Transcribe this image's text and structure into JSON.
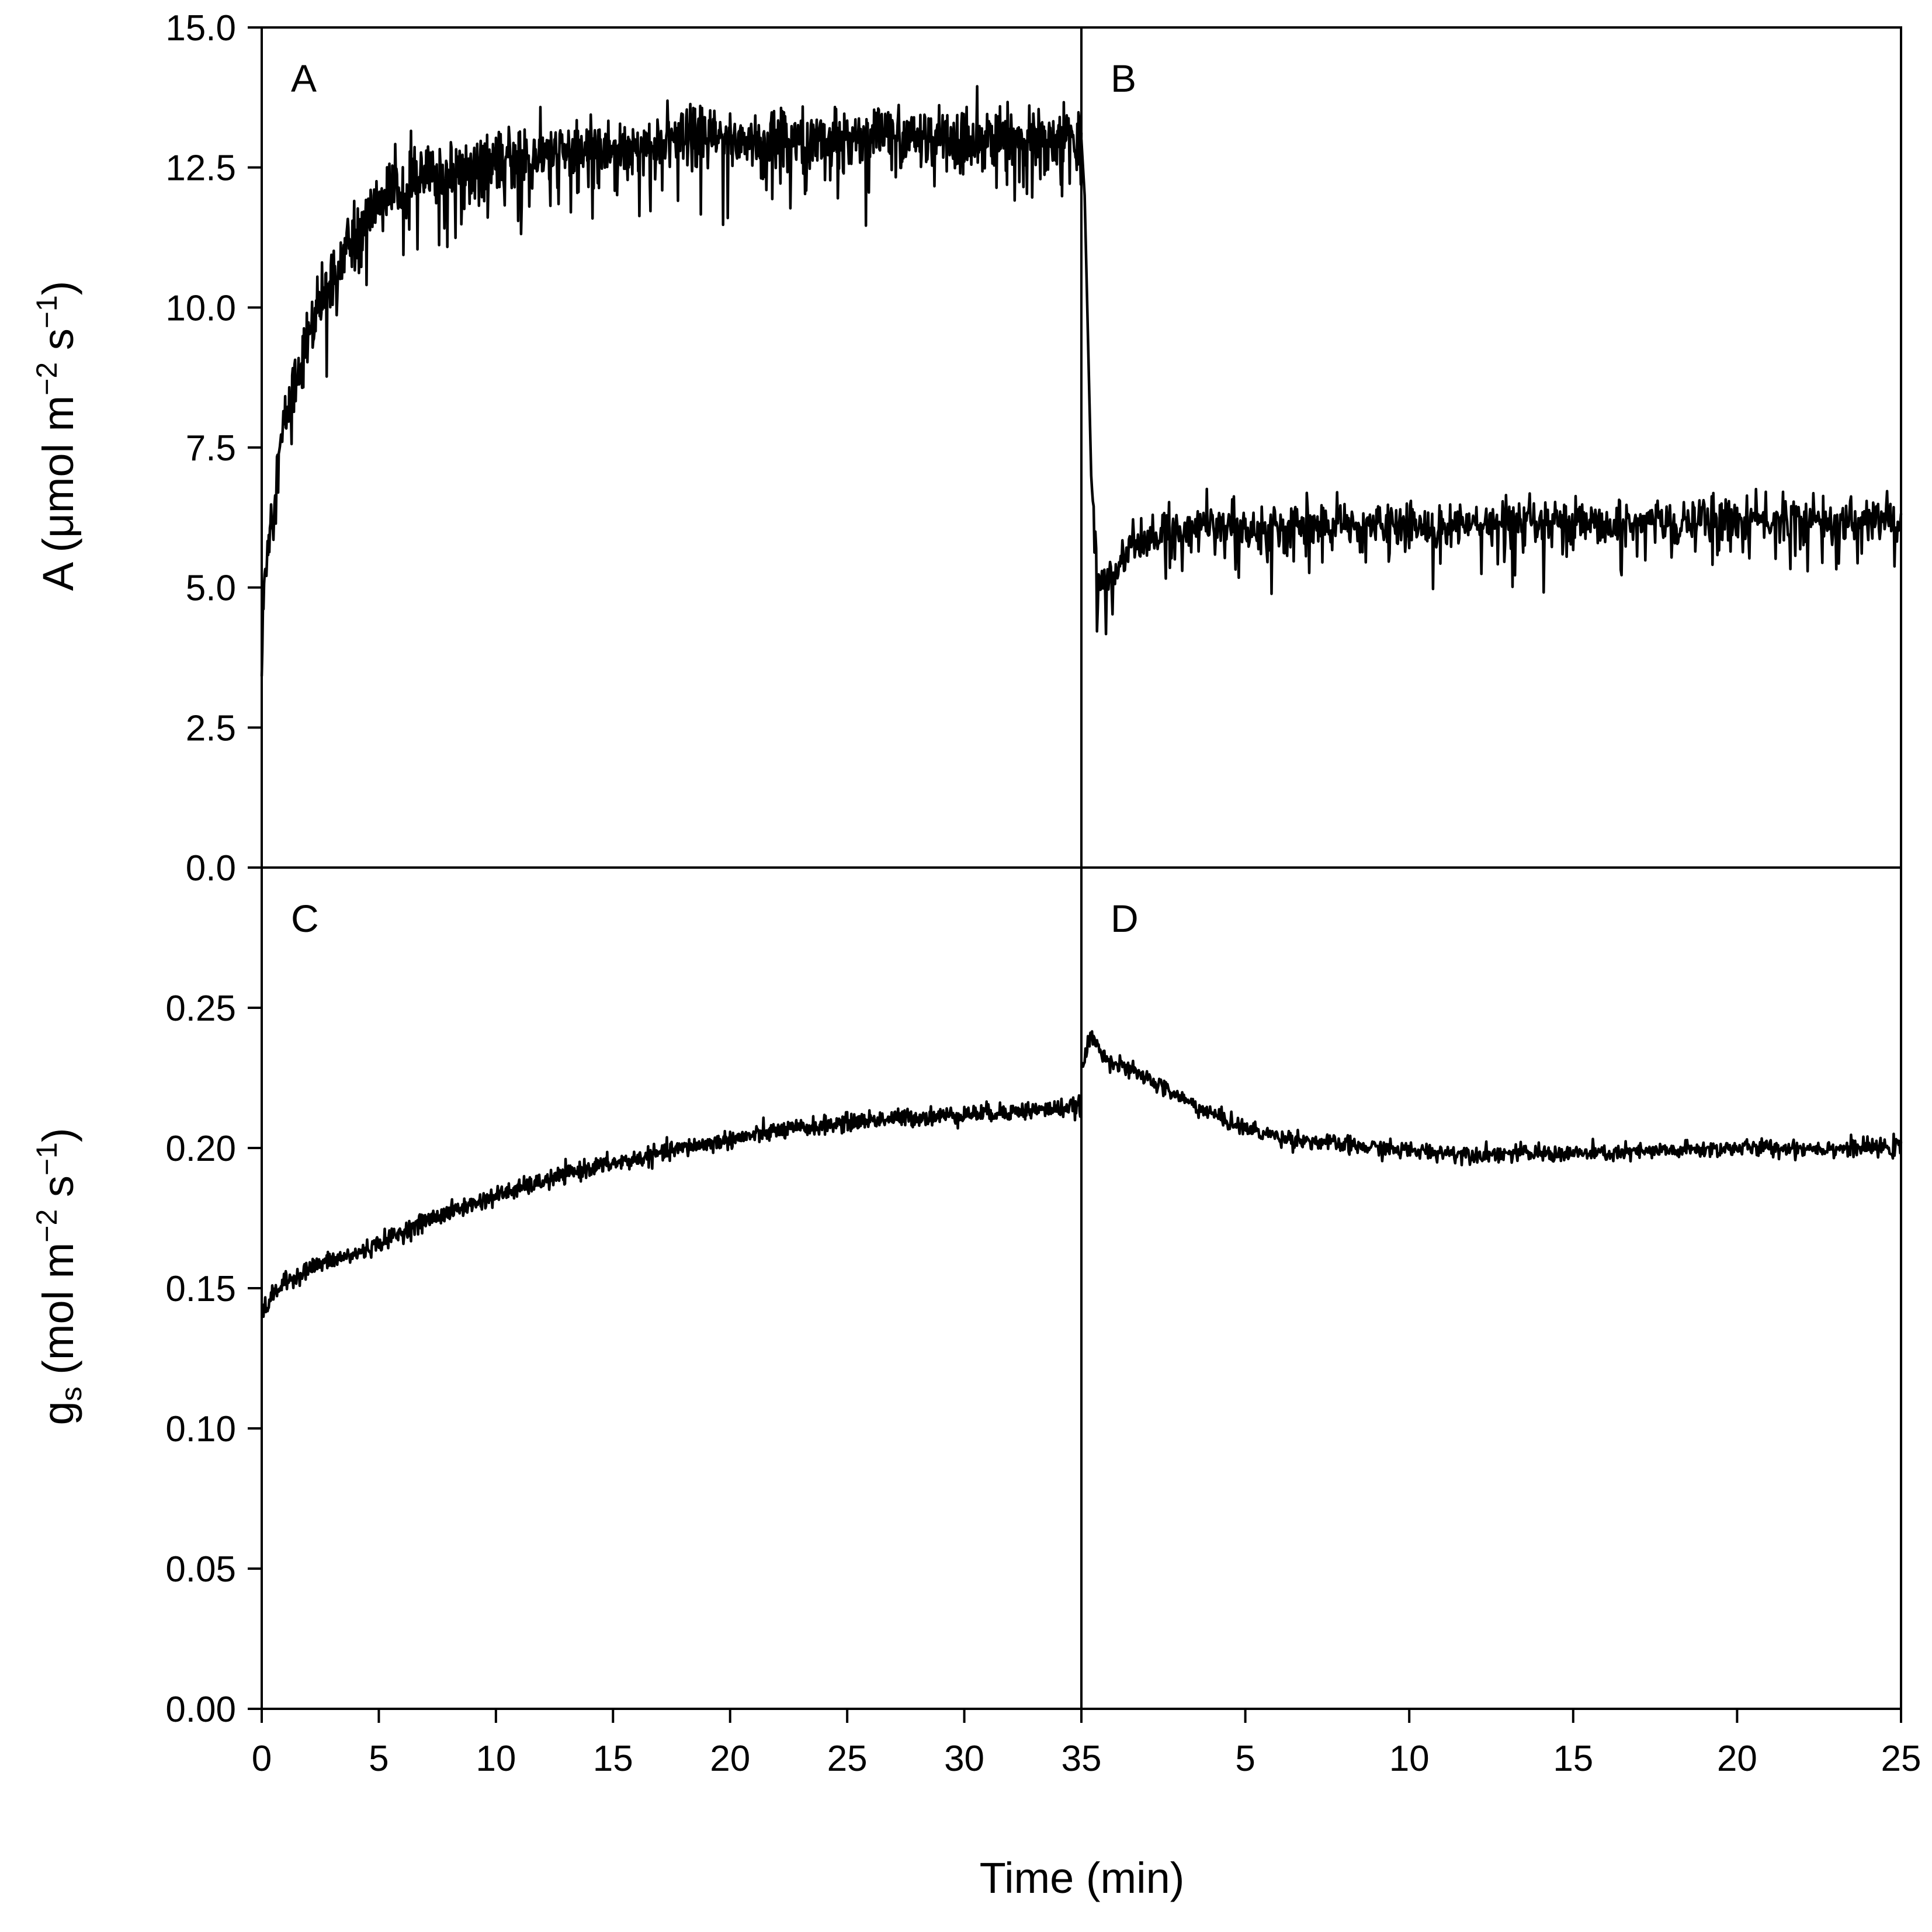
{
  "chart_data": {
    "type": "line",
    "layout": "2x2 panels sharing axes",
    "xlabel": "Time (min)",
    "grid": false,
    "legend": "none",
    "line_color": "#000000",
    "panels": [
      {
        "id": "A",
        "label": "A",
        "row": 0,
        "col": 0,
        "ylabel_main": "A",
        "ylabel_unit": "μmol m",
        "ylabel_unit_exp1": "−2",
        "ylabel_unit_mid": " s",
        "ylabel_unit_exp2": "−1",
        "xlim": [
          0,
          35
        ],
        "ylim": [
          0,
          15
        ],
        "x": [
          0,
          0.1,
          0.2,
          0.3,
          0.5,
          0.7,
          1,
          1.5,
          2,
          2.5,
          3,
          4,
          5,
          6,
          7,
          8,
          10,
          12,
          14,
          16,
          18,
          20,
          22,
          24,
          26,
          28,
          30,
          32,
          34,
          35
        ],
        "y": [
          3.5,
          5.0,
          5.5,
          6.0,
          6.5,
          7.2,
          8.0,
          8.8,
          9.5,
          10.0,
          10.6,
          11.3,
          11.9,
          12.2,
          12.3,
          12.4,
          12.6,
          12.7,
          12.8,
          12.9,
          13.0,
          13.0,
          13.0,
          13.0,
          13.1,
          13.0,
          13.0,
          13.0,
          13.0,
          13.0
        ],
        "noise": 0.6
      },
      {
        "id": "B",
        "label": "B",
        "row": 0,
        "col": 1,
        "xlim": [
          0,
          25
        ],
        "ylim": [
          0,
          15
        ],
        "x": [
          0,
          0.1,
          0.2,
          0.3,
          0.5,
          1,
          1.5,
          2,
          3,
          4,
          5,
          6,
          8,
          10,
          12,
          14,
          16,
          18,
          20,
          22,
          24,
          25
        ],
        "y": [
          13.0,
          12.0,
          9.5,
          7.0,
          5.0,
          5.3,
          5.7,
          5.9,
          6.0,
          6.1,
          6.1,
          6.1,
          6.1,
          6.1,
          6.1,
          6.1,
          6.1,
          6.2,
          6.2,
          6.2,
          6.2,
          6.2
        ],
        "noise": 0.45
      },
      {
        "id": "C",
        "label": "C",
        "row": 1,
        "col": 0,
        "ylabel_main": "g",
        "ylabel_sub": "s",
        "ylabel_unit": "mol m",
        "ylabel_unit_exp1": "−2",
        "ylabel_unit_mid": " s",
        "ylabel_unit_exp2": "−1",
        "xlim": [
          0,
          35
        ],
        "ylim": [
          0,
          0.3
        ],
        "x": [
          0,
          0.5,
          1,
          2,
          3,
          4,
          5,
          6,
          7,
          8,
          10,
          12,
          14,
          16,
          18,
          20,
          22,
          24,
          26,
          28,
          30,
          32,
          34,
          35
        ],
        "y": [
          0.14,
          0.148,
          0.152,
          0.157,
          0.16,
          0.162,
          0.166,
          0.17,
          0.174,
          0.177,
          0.183,
          0.188,
          0.193,
          0.196,
          0.2,
          0.203,
          0.206,
          0.208,
          0.21,
          0.211,
          0.212,
          0.213,
          0.214,
          0.215
        ],
        "noise": 0.0035
      },
      {
        "id": "D",
        "label": "D",
        "row": 1,
        "col": 1,
        "xlim": [
          0,
          25
        ],
        "ylim": [
          0,
          0.3
        ],
        "x": [
          0,
          0.3,
          0.5,
          1,
          2,
          3,
          4,
          5,
          6,
          8,
          10,
          12,
          14,
          16,
          18,
          20,
          22,
          24,
          25
        ],
        "y": [
          0.228,
          0.24,
          0.236,
          0.23,
          0.225,
          0.218,
          0.212,
          0.207,
          0.204,
          0.201,
          0.199,
          0.198,
          0.198,
          0.198,
          0.199,
          0.2,
          0.2,
          0.2,
          0.2
        ],
        "noise": 0.0035
      }
    ],
    "top_yticks": [
      "15.0",
      "12.5",
      "10.0",
      "7.5",
      "5.0",
      "2.5",
      "0.0"
    ],
    "top_ytick_values": [
      15,
      12.5,
      10,
      7.5,
      5,
      2.5,
      0
    ],
    "bottom_yticks": [
      "0.25",
      "0.20",
      "0.15",
      "0.10",
      "0.05",
      "0.00"
    ],
    "bottom_ytick_values": [
      0.25,
      0.2,
      0.15,
      0.1,
      0.05,
      0
    ],
    "left_xticks": [
      "0",
      "5",
      "10",
      "15",
      "20",
      "25",
      "30",
      "35"
    ],
    "left_xtick_values": [
      0,
      5,
      10,
      15,
      20,
      25,
      30,
      35
    ],
    "right_xticks": [
      "5",
      "10",
      "15",
      "20",
      "25"
    ],
    "right_xtick_values": [
      5,
      10,
      15,
      20,
      25
    ]
  }
}
